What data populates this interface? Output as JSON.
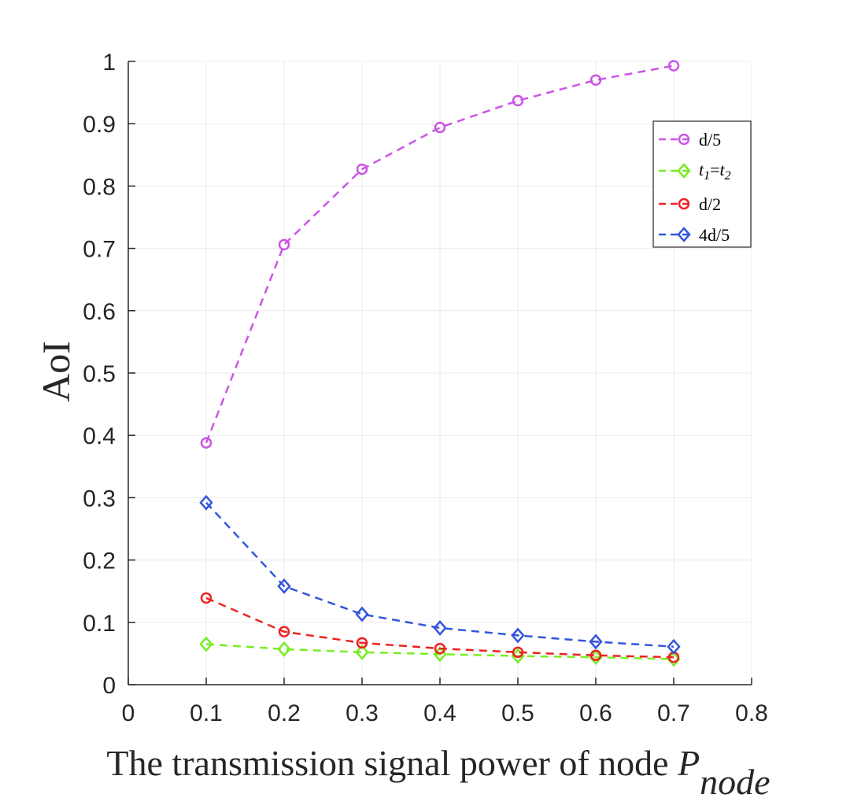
{
  "chart_data": {
    "type": "line",
    "title": "",
    "xlabel": "The transmission signal power of node ",
    "xlabel_symbol": "P",
    "xlabel_subscript": "node",
    "ylabel": "AoI",
    "xlim": [
      0,
      0.8
    ],
    "ylim": [
      0,
      1
    ],
    "xticks": [
      "0",
      "0.1",
      "0.2",
      "0.3",
      "0.4",
      "0.5",
      "0.6",
      "0.7",
      "0.8"
    ],
    "yticks": [
      "0",
      "0.1",
      "0.2",
      "0.3",
      "0.4",
      "0.5",
      "0.6",
      "0.7",
      "0.8",
      "0.9",
      "1"
    ],
    "grid": true,
    "legend_position": "top-right",
    "x": [
      0.1,
      0.2,
      0.3,
      0.4,
      0.5,
      0.6,
      0.7
    ],
    "series": [
      {
        "name": "d/5",
        "color": "#cc55e6",
        "marker": "circle",
        "values": [
          0.388,
          0.706,
          0.827,
          0.894,
          0.937,
          0.97,
          0.993
        ]
      },
      {
        "name": "t1=t2",
        "label_t": "t",
        "label_sub1": "1",
        "label_eq": "=",
        "label_sub2": "2",
        "color": "#77ee22",
        "marker": "diamond",
        "values": [
          0.065,
          0.057,
          0.052,
          0.049,
          0.046,
          0.044,
          0.041
        ]
      },
      {
        "name": "d/2",
        "color": "#ee2222",
        "marker": "circle",
        "values": [
          0.139,
          0.085,
          0.067,
          0.058,
          0.052,
          0.047,
          0.044
        ]
      },
      {
        "name": "4d/5",
        "color": "#3355dd",
        "marker": "diamond",
        "values": [
          0.292,
          0.158,
          0.113,
          0.091,
          0.079,
          0.069,
          0.061
        ]
      }
    ]
  }
}
